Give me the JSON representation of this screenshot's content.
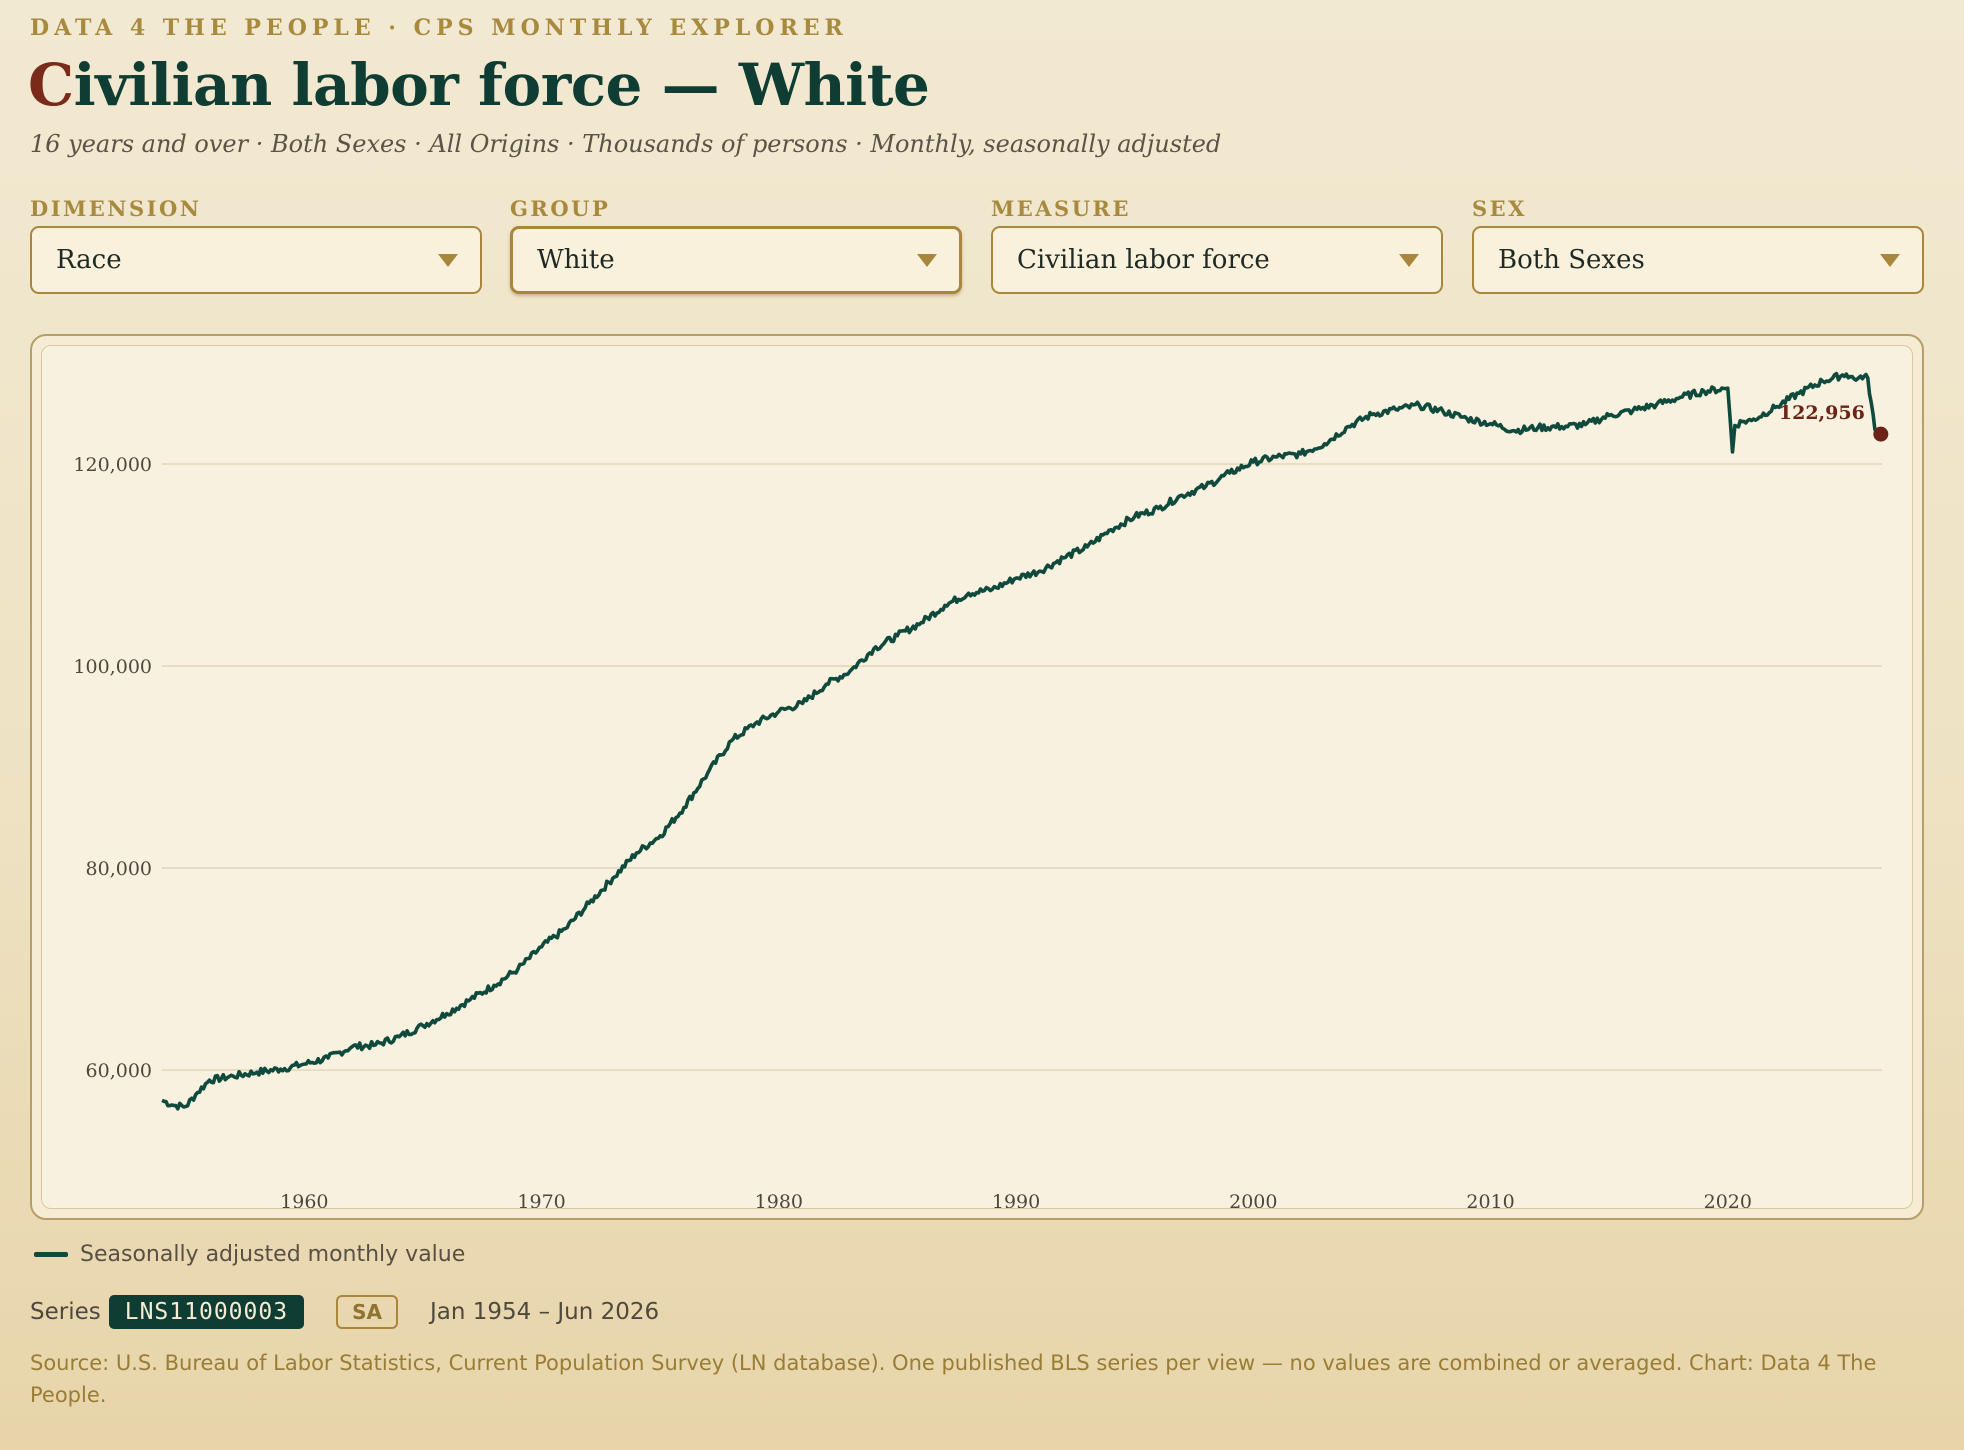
{
  "header": {
    "kicker": "DATA 4 THE PEOPLE · CPS MONTHLY EXPLORER",
    "title_first": "C",
    "title_rest": "ivilian labor force — White",
    "subtitle": "16 years and over · Both Sexes · All Origins · Thousands of persons · Monthly, seasonally adjusted"
  },
  "filters": [
    {
      "label": "DIMENSION",
      "value": "Race"
    },
    {
      "label": "GROUP",
      "value": "White"
    },
    {
      "label": "MEASURE",
      "value": "Civilian labor force"
    },
    {
      "label": "SEX",
      "value": "Both Sexes"
    }
  ],
  "legend": {
    "label": "Seasonally adjusted monthly value"
  },
  "series": {
    "prefix": "Series",
    "id": "LNS11000003",
    "badge": "SA",
    "range": "Jan 1954 – Jun 2026"
  },
  "source": "Source: U.S. Bureau of Labor Statistics, Current Population Survey (LN database). One published BLS series per view — no values are combined or averaged. Chart: Data 4 The People.",
  "colors": {
    "line": "#0f4a3c",
    "endpoint": "#6b2416",
    "grid": "#e2d6b8",
    "tick": "#4d463c"
  },
  "chart_data": {
    "type": "line",
    "title": "",
    "xlabel": "",
    "ylabel": "",
    "xlim": [
      1954,
      2026.5
    ],
    "ylim": [
      51500,
      129700
    ],
    "x_ticks": [
      1960,
      1970,
      1980,
      1990,
      2000,
      2010,
      2020
    ],
    "y_ticks": [
      60000,
      80000,
      100000,
      120000
    ],
    "y_tick_labels": [
      "60,000",
      "80,000",
      "100,000",
      "120,000"
    ],
    "grid": "horizontal",
    "last_value_label": "122,956",
    "series": [
      {
        "x": [
          1954.0,
          1954.5,
          1955.0,
          1955.5,
          1956.0,
          1957.0,
          1958.0,
          1959.0,
          1960.0,
          1961.0,
          1962.0,
          1963.0,
          1964.0,
          1965.0,
          1966.0,
          1967.0,
          1968.0,
          1969.0,
          1970.0,
          1971.0,
          1972.0,
          1973.0,
          1974.0,
          1975.0,
          1976.0,
          1977.0,
          1978.0,
          1979.0,
          1980.0,
          1981.0,
          1982.0,
          1983.0,
          1984.0,
          1985.0,
          1986.0,
          1987.0,
          1988.0,
          1989.0,
          1990.0,
          1991.0,
          1992.0,
          1993.0,
          1994.0,
          1995.0,
          1996.0,
          1997.0,
          1998.0,
          1999.0,
          2000.0,
          2001.0,
          2002.0,
          2003.0,
          2004.0,
          2005.0,
          2006.0,
          2007.0,
          2008.0,
          2009.0,
          2010.0,
          2011.0,
          2012.0,
          2013.0,
          2014.0,
          2015.0,
          2016.0,
          2017.0,
          2018.0,
          2019.0,
          2020.0,
          2020.2,
          2020.3,
          2020.6,
          2021.0,
          2022.0,
          2023.0,
          2024.0,
          2025.0,
          2025.4,
          2025.6,
          2025.9,
          2026.2,
          2026.45
        ],
        "y": [
          57000,
          56500,
          56400,
          57800,
          59000,
          59400,
          59800,
          60100,
          60600,
          61200,
          62300,
          62500,
          63300,
          64400,
          65600,
          67000,
          68400,
          70000,
          72200,
          74000,
          76500,
          79000,
          81500,
          83200,
          86000,
          89400,
          92600,
          94300,
          95500,
          96300,
          98200,
          99500,
          101700,
          103000,
          104300,
          106000,
          107200,
          107600,
          108700,
          109400,
          110700,
          111800,
          113500,
          114800,
          115600,
          116900,
          117800,
          119100,
          120200,
          120700,
          121000,
          122000,
          123700,
          124900,
          125400,
          125800,
          125200,
          124500,
          124000,
          123300,
          123600,
          123700,
          123900,
          124800,
          125300,
          125900,
          126600,
          127200,
          127500,
          121200,
          123800,
          124200,
          124300,
          125600,
          127000,
          128200,
          128900,
          128300,
          128700,
          128500,
          123400,
          122956
        ]
      }
    ]
  }
}
